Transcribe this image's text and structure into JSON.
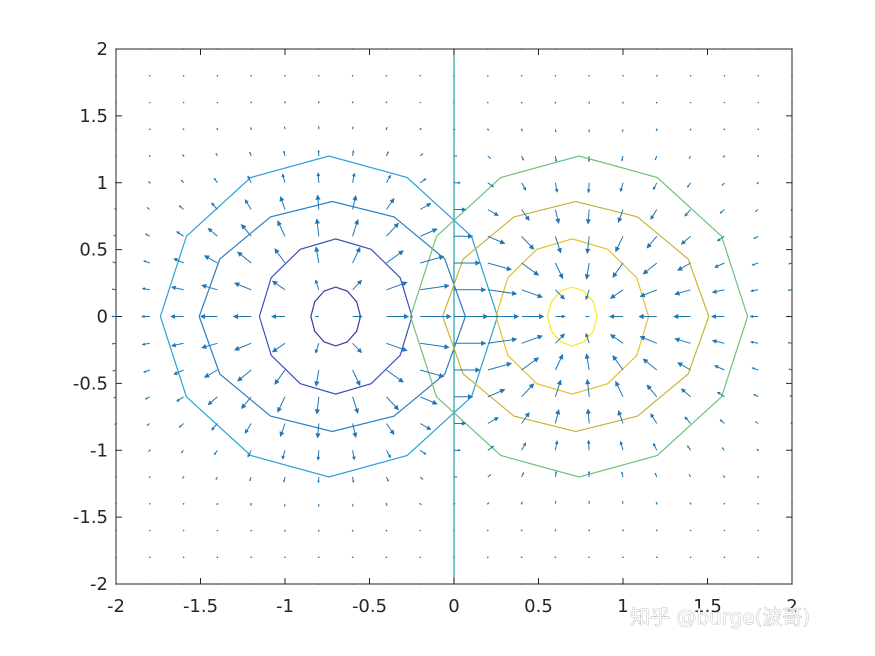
{
  "watermark": "知乎 @burge(波哥)",
  "chart_data": {
    "type": "contour-quiver",
    "title": "",
    "xlabel": "",
    "ylabel": "",
    "xlim": [
      -2,
      2
    ],
    "ylim": [
      -2,
      2
    ],
    "grid": false,
    "box": true,
    "x_ticks": [
      -2,
      -1.5,
      -1,
      -0.5,
      0,
      0.5,
      1,
      1.5,
      2
    ],
    "x_tick_labels": [
      "-2",
      "-1.5",
      "-1",
      "-0.5",
      "0",
      "0.5",
      "1",
      "1.5",
      "2"
    ],
    "y_ticks": [
      2,
      1.5,
      1,
      0.5,
      0,
      -0.5,
      -1,
      -1.5,
      -2
    ],
    "y_tick_labels": [
      "2",
      "1.5",
      "1",
      "0.5",
      "0",
      "-0.5",
      "-1",
      "-1.5",
      "-2"
    ],
    "sources": [
      {
        "x": -0.7,
        "y": 0,
        "sign": -1
      },
      {
        "x": 0.7,
        "y": 0,
        "sign": 1
      }
    ],
    "contours": [
      {
        "level": -4,
        "color": "#3b3a9c",
        "cx": -0.7,
        "cy": 0,
        "rx": 0.14,
        "ry": 0.22
      },
      {
        "level": -3,
        "color": "#3d4fba",
        "cx": -0.7,
        "cy": 0,
        "rx": 0.43,
        "ry": 0.58
      },
      {
        "level": -2,
        "color": "#2d7fc4",
        "cx": -0.72,
        "cy": 0,
        "rx": 0.75,
        "ry": 0.86
      },
      {
        "level": -1,
        "color": "#2aa0d8",
        "cx": -0.74,
        "cy": 0,
        "rx": 0.95,
        "ry": 1.2
      },
      {
        "level": 0,
        "color": "#17a3a6",
        "x": 0
      },
      {
        "level": 1,
        "color": "#6cc27a",
        "cx": 0.74,
        "cy": 0,
        "rx": 0.95,
        "ry": 1.2
      },
      {
        "level": 2,
        "color": "#c9b43a",
        "cx": 0.72,
        "cy": 0,
        "rx": 0.75,
        "ry": 0.86
      },
      {
        "level": 3,
        "color": "#e5c02a",
        "cx": 0.7,
        "cy": 0,
        "rx": 0.43,
        "ry": 0.58
      },
      {
        "level": 4,
        "color": "#f5e72a",
        "cx": 0.7,
        "cy": 0,
        "rx": 0.14,
        "ry": 0.22
      }
    ],
    "quiver": {
      "x_min": -2,
      "x_max": 2,
      "y_min": -2,
      "y_max": 2,
      "step": 0.2,
      "color": "#1f77b4"
    }
  }
}
